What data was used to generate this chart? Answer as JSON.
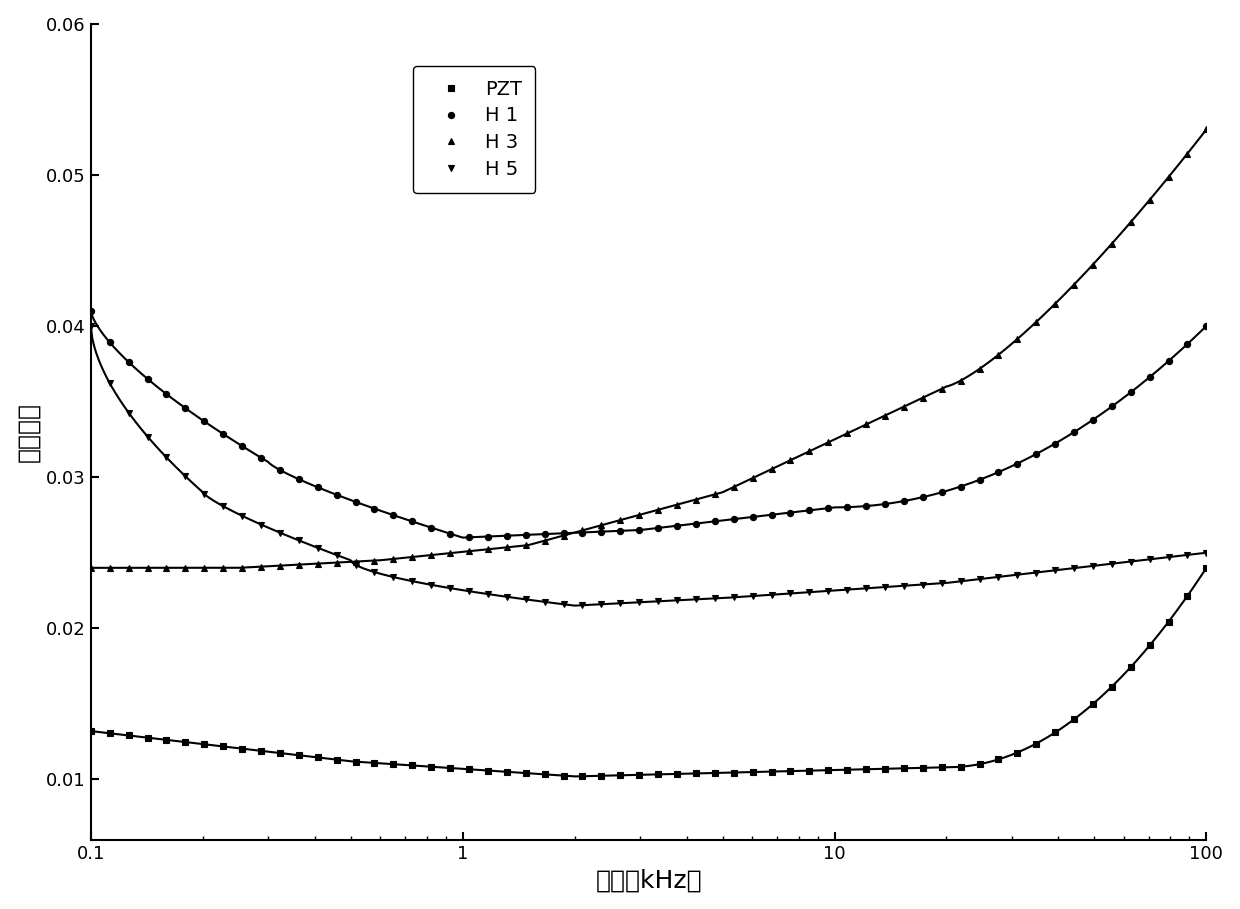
{
  "xlabel": "频率（kHz）",
  "ylabel": "介电损耗",
  "xlim": [
    0.1,
    100
  ],
  "ylim": [
    0.006,
    0.06
  ],
  "yticks": [
    0.01,
    0.02,
    0.03,
    0.04,
    0.05,
    0.06
  ],
  "background_color": "#ffffff",
  "legend_labels": [
    "PZT",
    "H 1",
    "H 3",
    "H 5"
  ],
  "markers": [
    "s",
    "o",
    "^",
    "v"
  ]
}
